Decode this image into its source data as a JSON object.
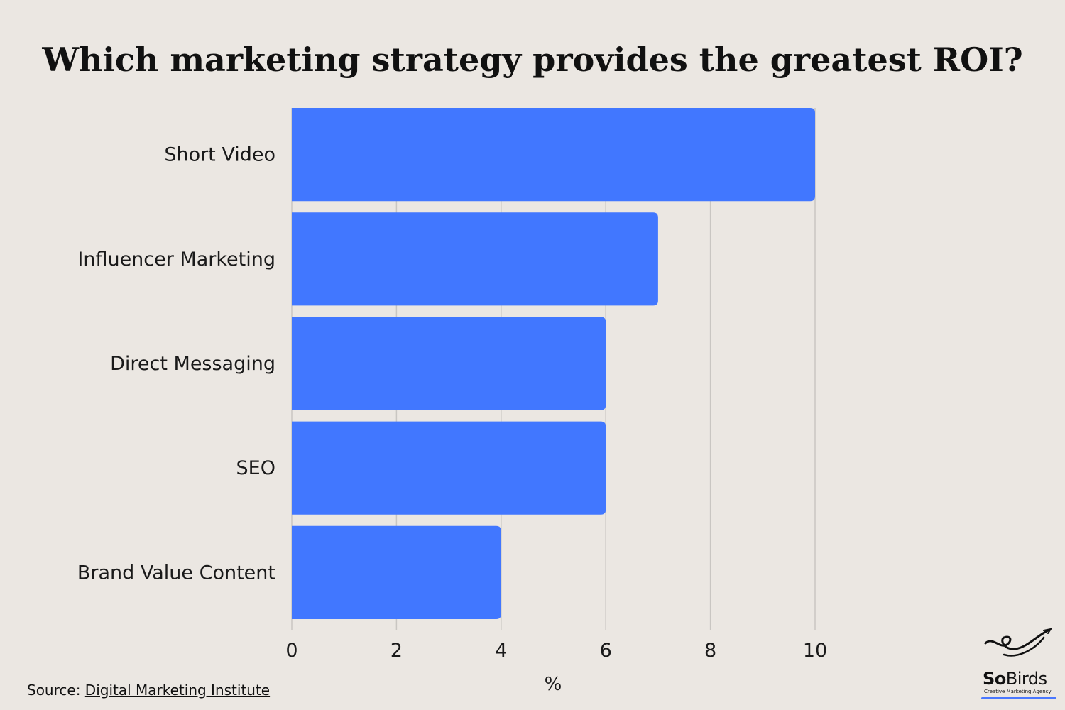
{
  "chart_data": {
    "type": "bar",
    "orientation": "horizontal",
    "title": "Which marketing strategy provides the greatest ROI?",
    "categories": [
      "Short Video",
      "Influencer Marketing",
      "Direct Messaging",
      "SEO",
      "Brand Value Content"
    ],
    "values": [
      10,
      7,
      6,
      6,
      4
    ],
    "xlabel": "%",
    "ylabel": "",
    "xlim": [
      0,
      10
    ],
    "xticks": [
      "0",
      "2",
      "4",
      "6",
      "8",
      "10"
    ],
    "grid": true,
    "legend": "none",
    "bar_color": "#4177ff"
  },
  "source": {
    "prefix": "Source: ",
    "link_text": "Digital Marketing Institute"
  },
  "logo": {
    "brand_bold": "So",
    "brand_rest": "Birds",
    "tagline": "Creative Marketing Agency",
    "icon": "bird-icon"
  },
  "colors": {
    "background": "#ebe7e2",
    "bar": "#4177ff",
    "grid": "#c9c6c2",
    "accent": "#4a78ff"
  }
}
